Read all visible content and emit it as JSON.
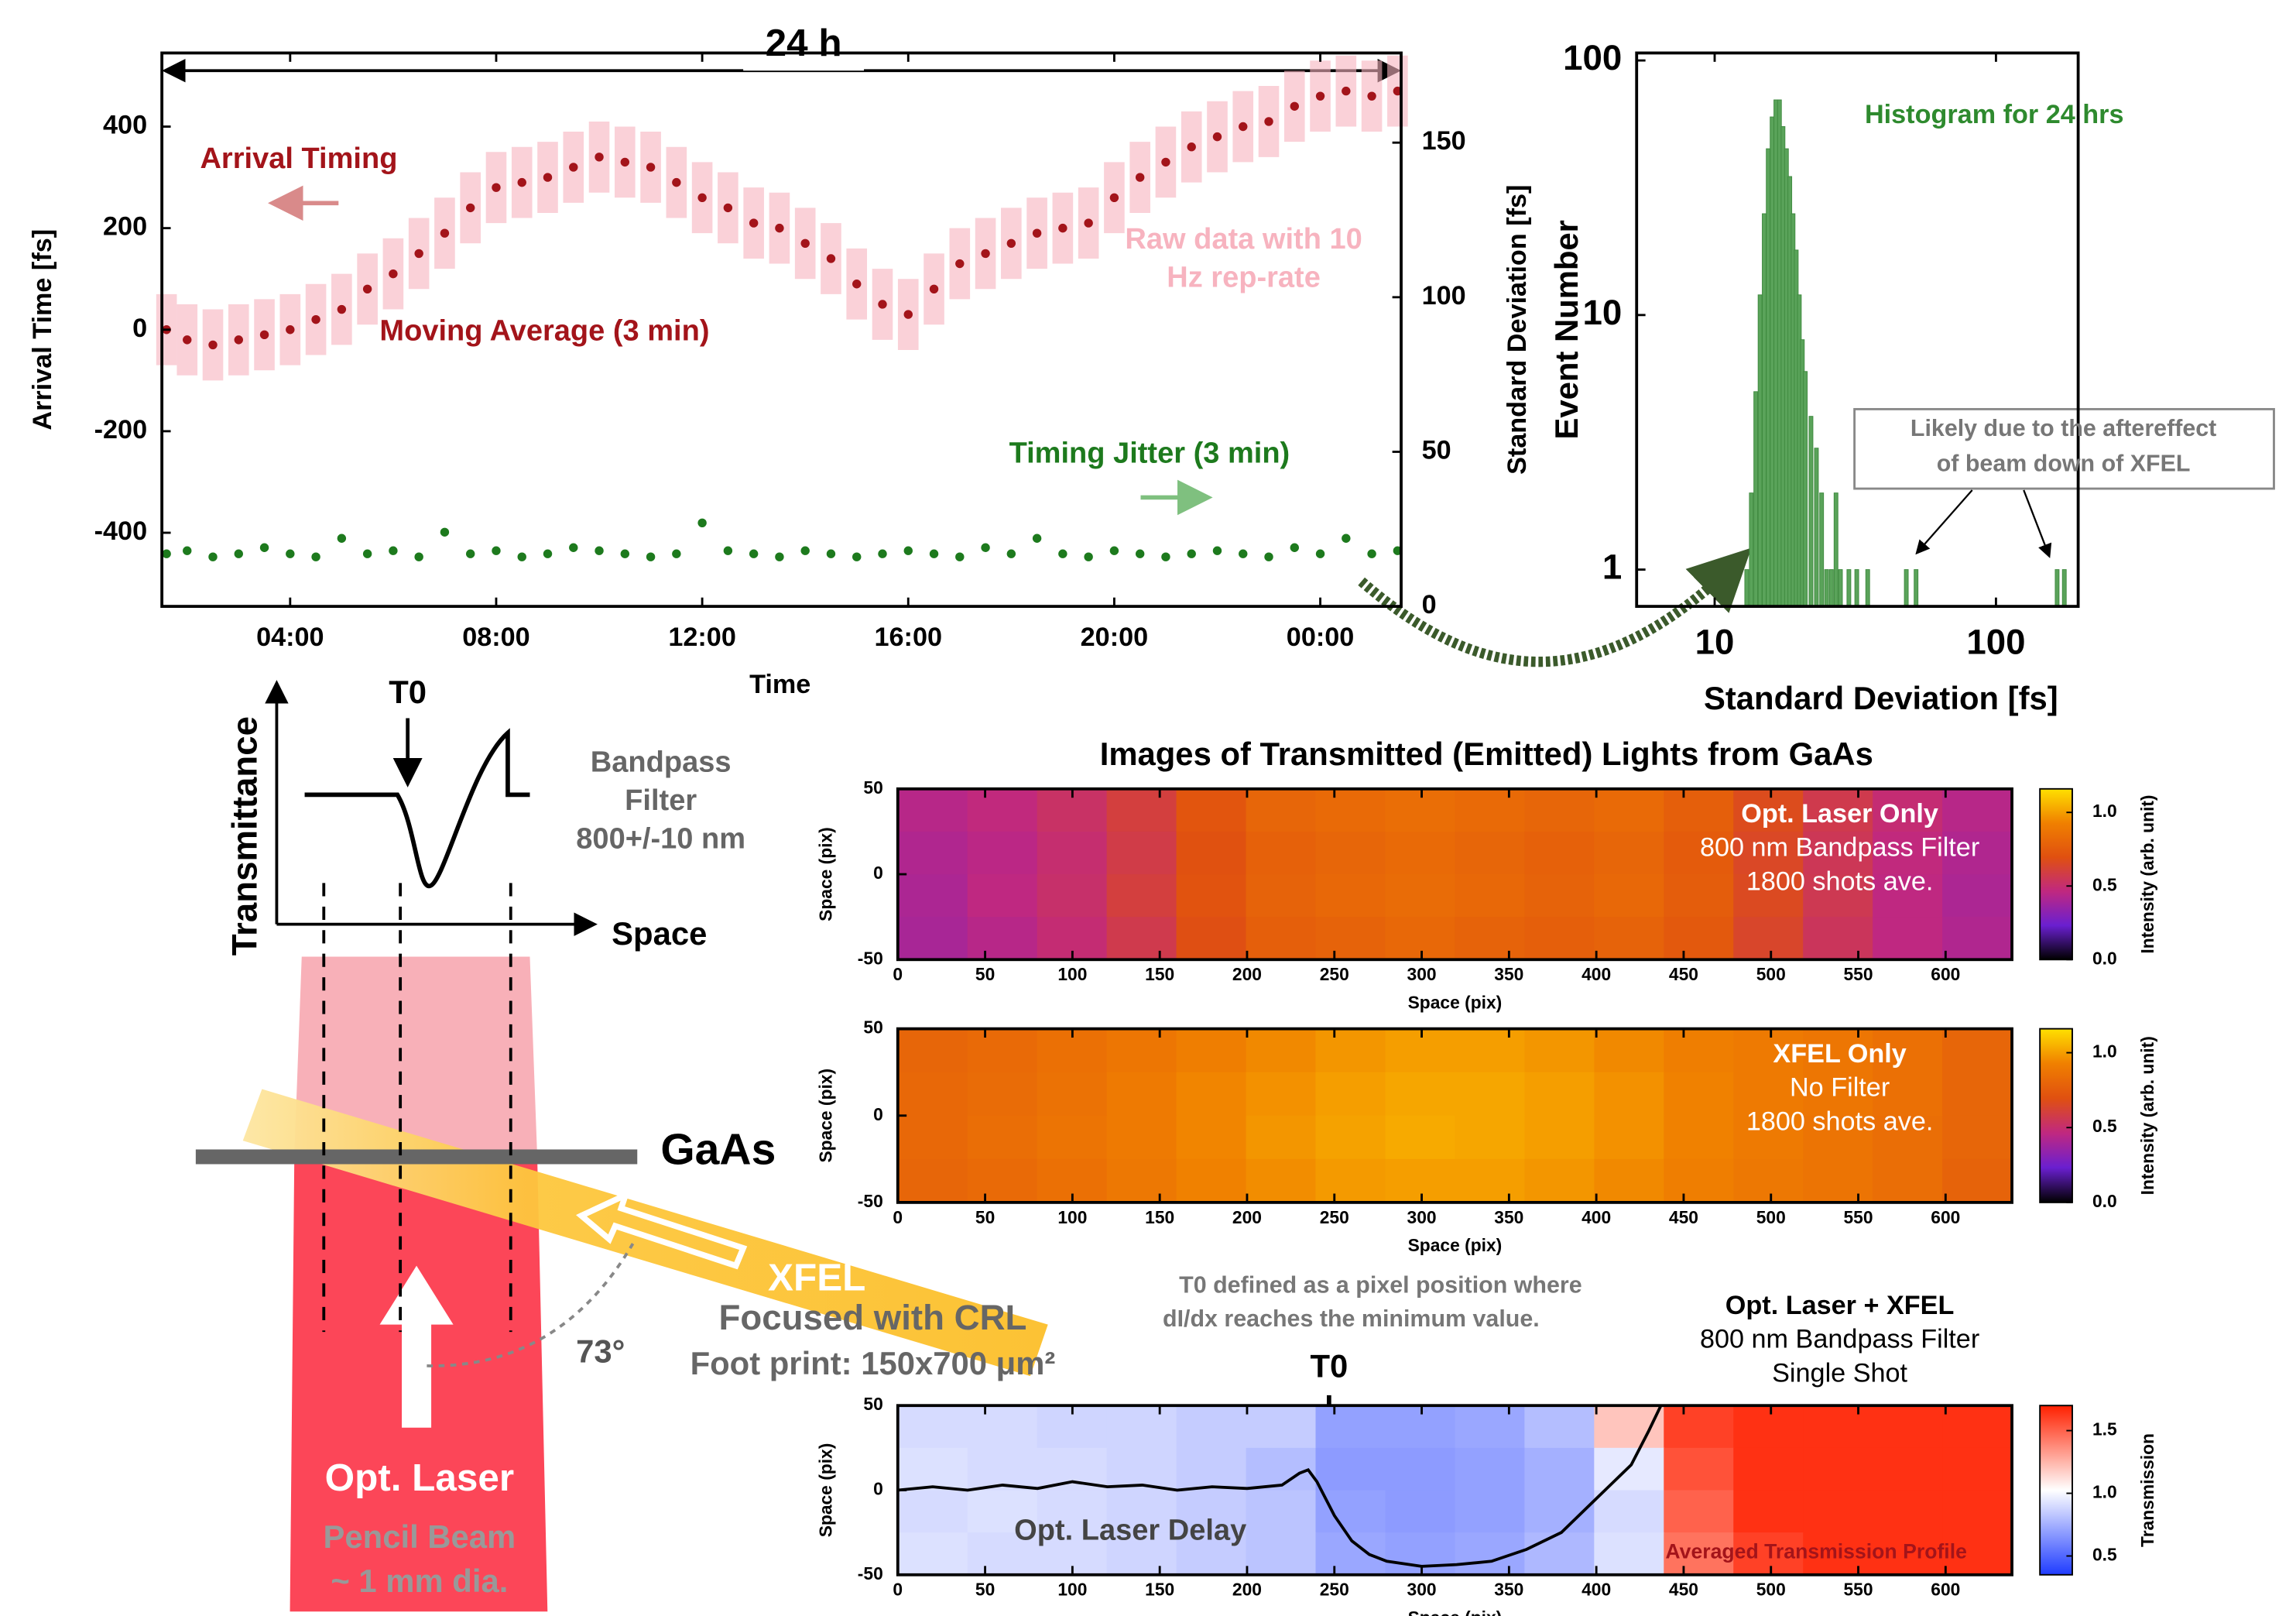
{
  "chart_data": [
    {
      "type": "line",
      "annotations": [
        "24 h",
        "Arrival Timing"
      ],
      "xlabel": "Time",
      "ylabel": "Arrival Time [fs]",
      "y2label": "Standard Deviation [fs]",
      "x": [
        1.6,
        2,
        2.5,
        3,
        3.5,
        4,
        4.5,
        5,
        5.5,
        6,
        6.5,
        7,
        7.5,
        8,
        8.5,
        9,
        9.5,
        10,
        10.5,
        11,
        11.5,
        12,
        12.5,
        13,
        13.5,
        14,
        14.5,
        15,
        15.5,
        16,
        16.5,
        17,
        17.5,
        18,
        18.5,
        19,
        19.5,
        20,
        20.5,
        21,
        21.5,
        22,
        22.5,
        23,
        23.5,
        24,
        24.5,
        25,
        25.5
      ],
      "xlim": [
        1.51,
        25.57
      ],
      "xticks": [
        {
          "value": 4,
          "label": "04:00"
        },
        {
          "value": 8,
          "label": "08:00"
        },
        {
          "value": 12,
          "label": "12:00"
        },
        {
          "value": 16,
          "label": "16:00"
        },
        {
          "value": 20,
          "label": "20:00"
        },
        {
          "value": 24,
          "label": "00:00"
        }
      ],
      "ylim": [
        -545,
        545
      ],
      "yticks": [
        -400,
        -200,
        0,
        200,
        400
      ],
      "y2lim": [
        0,
        179
      ],
      "y2ticks": [
        0,
        50,
        100,
        150
      ],
      "series": [
        {
          "name": "Raw data with 10 Hz rep-rate",
          "color": "#f7b3bf",
          "low": [
            -70,
            -90,
            -100,
            -90,
            -80,
            -70,
            -50,
            -30,
            10,
            40,
            80,
            120,
            170,
            210,
            220,
            230,
            250,
            270,
            260,
            250,
            220,
            190,
            170,
            140,
            130,
            100,
            70,
            20,
            -20,
            -40,
            10,
            60,
            80,
            100,
            120,
            130,
            140,
            190,
            230,
            260,
            290,
            310,
            330,
            340,
            370,
            390,
            400,
            390,
            400
          ],
          "high": [
            70,
            50,
            40,
            50,
            60,
            70,
            90,
            110,
            150,
            180,
            220,
            260,
            310,
            350,
            360,
            370,
            390,
            410,
            400,
            390,
            360,
            330,
            310,
            280,
            270,
            240,
            210,
            160,
            120,
            100,
            150,
            200,
            220,
            240,
            260,
            270,
            280,
            330,
            370,
            400,
            430,
            450,
            470,
            480,
            510,
            530,
            540,
            530,
            540
          ]
        },
        {
          "name": "Moving Average (3 min)",
          "color": "#a3141a",
          "values": [
            0,
            -20,
            -30,
            -20,
            -10,
            0,
            20,
            40,
            80,
            110,
            150,
            190,
            240,
            280,
            290,
            300,
            320,
            340,
            330,
            320,
            290,
            260,
            240,
            210,
            200,
            170,
            140,
            90,
            50,
            30,
            80,
            130,
            150,
            170,
            190,
            200,
            210,
            260,
            300,
            330,
            360,
            380,
            400,
            410,
            440,
            460,
            470,
            460,
            470
          ]
        },
        {
          "name": "Timing Jitter (3 min)",
          "color": "#1d7a1d",
          "axis": "y2",
          "values": [
            17,
            18,
            16,
            17,
            19,
            17,
            16,
            22,
            17,
            18,
            16,
            24,
            17,
            18,
            16,
            17,
            19,
            18,
            17,
            16,
            17,
            27,
            18,
            17,
            16,
            18,
            17,
            16,
            17,
            18,
            17,
            16,
            19,
            17,
            22,
            17,
            16,
            18,
            17,
            16,
            17,
            18,
            17,
            16,
            19,
            17,
            22,
            17,
            18
          ]
        }
      ]
    },
    {
      "type": "bar",
      "xscale": "log",
      "yscale": "log",
      "color": "#5aa35a",
      "annotations": [
        "Histogram for 24 hrs",
        "Likely due to the aftereffect",
        "of beam down of XFEL"
      ],
      "xlabel": "Standard Deviation [fs]",
      "ylabel": "Event Number",
      "x": [
        13,
        13.5,
        14,
        14.5,
        15,
        15.5,
        16,
        16.5,
        17,
        17.5,
        18,
        18.5,
        19,
        19.5,
        20,
        20.5,
        21,
        22,
        23,
        24,
        25,
        26,
        27,
        28,
        30,
        32,
        35,
        48,
        52,
        165,
        175
      ],
      "values": [
        1,
        2,
        5,
        12,
        25,
        45,
        60,
        70,
        70,
        55,
        45,
        35,
        25,
        18,
        12,
        8,
        6,
        4,
        3,
        2,
        1,
        1,
        2,
        1,
        1,
        1,
        1,
        1,
        1,
        1,
        1
      ],
      "xlim": [
        5.28,
        196
      ],
      "xticks": [
        10,
        100
      ],
      "ylim": [
        0.717,
        107
      ],
      "yticks": [
        1,
        10,
        100
      ]
    },
    {
      "type": "heatmap",
      "title": "Images of Transmitted (Emitted) Lights from GaAs",
      "labels": [
        "Opt. Laser Only",
        "800 nm Bandpass Filter",
        "1800 shots ave."
      ],
      "label_color": "#ffffff",
      "xlabel": "Space (pix)",
      "ylabel": "Space (pix)",
      "cbar_label": "Intensity (arb. unit)",
      "xlim": [
        0,
        638
      ],
      "xticks": [
        0,
        50,
        100,
        150,
        200,
        250,
        300,
        350,
        400,
        450,
        500,
        550,
        600
      ],
      "ylim": [
        -50,
        50
      ],
      "yticks": [
        -50,
        0,
        50
      ],
      "clim": [
        0,
        1.16
      ],
      "cticks": [
        {
          "value": 0,
          "label": "0.0"
        },
        0.5,
        {
          "value": 1,
          "label": "1.0"
        }
      ],
      "colors": [
        "#000000",
        "#6a1fd0",
        "#c02880",
        "#e05010",
        "#f08000",
        "#ffe000"
      ],
      "z": [
        [
          0.44,
          0.47,
          0.52,
          0.6,
          0.72,
          0.8,
          0.82,
          0.84,
          0.82,
          0.8,
          0.82,
          0.77,
          0.67,
          0.57,
          0.49,
          0.44
        ],
        [
          0.42,
          0.45,
          0.5,
          0.58,
          0.7,
          0.78,
          0.8,
          0.82,
          0.8,
          0.78,
          0.8,
          0.75,
          0.65,
          0.55,
          0.47,
          0.42
        ],
        [
          0.41,
          0.46,
          0.51,
          0.6,
          0.71,
          0.79,
          0.81,
          0.83,
          0.81,
          0.79,
          0.81,
          0.76,
          0.66,
          0.56,
          0.46,
          0.41
        ],
        [
          0.4,
          0.44,
          0.49,
          0.57,
          0.69,
          0.77,
          0.79,
          0.81,
          0.79,
          0.77,
          0.79,
          0.74,
          0.64,
          0.54,
          0.46,
          0.42
        ]
      ]
    },
    {
      "type": "heatmap",
      "labels": [
        "XFEL Only",
        "No Filter",
        "1800 shots ave."
      ],
      "label_color": "#ffffff",
      "xlabel": "Space (pix)",
      "ylabel": "Space (pix)",
      "cbar_label": "Intensity (arb. unit)",
      "xlim": [
        0,
        638
      ],
      "xticks": [
        0,
        50,
        100,
        150,
        200,
        250,
        300,
        350,
        400,
        450,
        500,
        550,
        600
      ],
      "ylim": [
        -50,
        50
      ],
      "yticks": [
        -50,
        0,
        50
      ],
      "clim": [
        0,
        1.16
      ],
      "cticks": [
        {
          "value": 0,
          "label": "0.0"
        },
        0.5,
        {
          "value": 1,
          "label": "1.0"
        }
      ],
      "colors": [
        "#000000",
        "#6a1fd0",
        "#c02880",
        "#e05010",
        "#f08000",
        "#ffe000"
      ],
      "z": [
        [
          0.8,
          0.82,
          0.85,
          0.88,
          0.92,
          0.95,
          0.98,
          1.0,
          1.0,
          0.98,
          0.95,
          0.92,
          0.9,
          0.88,
          0.85,
          0.8
        ],
        [
          0.81,
          0.83,
          0.86,
          0.9,
          0.94,
          0.97,
          1.0,
          1.02,
          1.02,
          1.0,
          0.97,
          0.93,
          0.9,
          0.88,
          0.85,
          0.8
        ],
        [
          0.81,
          0.84,
          0.87,
          0.9,
          0.94,
          0.98,
          1.01,
          1.03,
          1.02,
          1.0,
          0.97,
          0.93,
          0.9,
          0.87,
          0.84,
          0.8
        ],
        [
          0.8,
          0.82,
          0.85,
          0.89,
          0.93,
          0.96,
          0.99,
          1.0,
          1.0,
          0.98,
          0.95,
          0.92,
          0.89,
          0.87,
          0.84,
          0.79
        ]
      ]
    },
    {
      "type": "heatmap",
      "labels": [
        "Opt. Laser + XFEL",
        "800 nm Bandpass Filter",
        "Single Shot"
      ],
      "label_color": "#000000",
      "annotations": [
        "T0 defined as a pixel position where",
        "dI/dx reaches the minimum value.",
        "T0",
        "Opt. Laser Delay"
      ],
      "xlabel": "Space (pix)",
      "ylabel": "Space (pix)",
      "cbar_label": "Transmission",
      "xlim": [
        0,
        638
      ],
      "xticks": [
        0,
        50,
        100,
        150,
        200,
        250,
        300,
        350,
        400,
        450,
        500,
        550,
        600
      ],
      "ylim": [
        -50,
        50
      ],
      "yticks": [
        -50,
        0,
        50
      ],
      "clim": [
        0.35,
        1.7
      ],
      "cticks": [
        0.5,
        {
          "value": 1,
          "label": "1.0"
        },
        1.5
      ],
      "colors": [
        "#1f3cff",
        "#ffffff",
        "#ff2000"
      ],
      "z": [
        [
          0.9,
          0.9,
          0.88,
          0.88,
          0.85,
          0.85,
          0.7,
          0.7,
          0.72,
          0.8,
          1.2,
          1.6,
          1.65,
          1.65,
          1.65,
          1.65
        ],
        [
          0.92,
          0.9,
          0.9,
          0.88,
          0.85,
          0.8,
          0.68,
          0.68,
          0.7,
          0.75,
          0.95,
          1.55,
          1.65,
          1.65,
          1.65,
          1.65
        ],
        [
          0.9,
          0.92,
          0.9,
          0.88,
          0.85,
          0.82,
          0.7,
          0.68,
          0.7,
          0.75,
          0.9,
          1.5,
          1.65,
          1.65,
          1.65,
          1.65
        ],
        [
          0.92,
          0.9,
          0.9,
          0.88,
          0.85,
          0.82,
          0.72,
          0.7,
          0.72,
          0.78,
          0.92,
          1.45,
          1.6,
          1.65,
          1.65,
          1.65
        ]
      ],
      "series": [
        {
          "name": "Averaged Transmission Profile",
          "color": "#000000",
          "x": [
            0,
            20,
            40,
            60,
            80,
            100,
            120,
            140,
            160,
            180,
            200,
            220,
            230,
            235,
            240,
            250,
            260,
            270,
            280,
            300,
            320,
            340,
            360,
            380,
            390,
            400,
            410,
            420,
            430,
            437
          ],
          "values": [
            0,
            2,
            0,
            3,
            1,
            5,
            2,
            3,
            0,
            2,
            1,
            3,
            10,
            12,
            5,
            -15,
            -30,
            -38,
            -42,
            -45,
            -44,
            -42,
            -35,
            -25,
            -15,
            -5,
            5,
            15,
            35,
            50
          ]
        }
      ]
    }
  ],
  "diagram": {
    "t0": "T0",
    "y_label": "Transmittance",
    "x_label": "Space",
    "filter": [
      "Bandpass",
      "Filter",
      "800+/-10 nm"
    ],
    "sample": "GaAs",
    "xfel": "XFEL",
    "focus": "Focused with CRL",
    "footprint": "Foot print: 150x700 μm²",
    "angle": "73°",
    "laser": "Opt. Laser",
    "beam": [
      "Pencil Beam",
      "~ 1 mm dia."
    ]
  }
}
